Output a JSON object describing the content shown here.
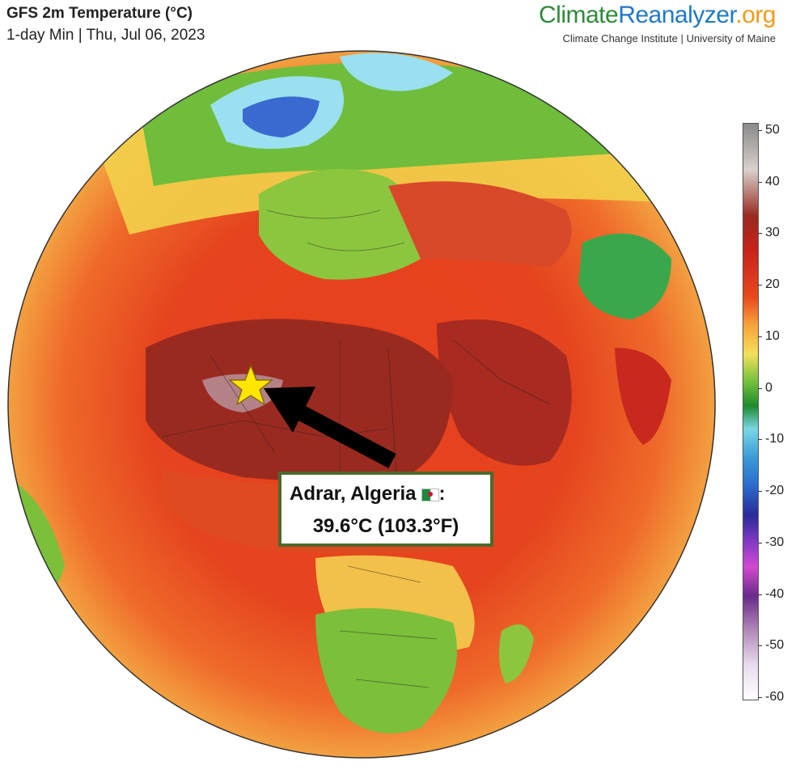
{
  "header": {
    "title": "GFS 2m Temperature (°C)",
    "subtitle": "1-day Min | Thu, Jul 06, 2023"
  },
  "brand": {
    "part1": "Climate",
    "part2": "Reanalyzer",
    "part3": ".org",
    "tagline": "Climate Change Institute | University of Maine"
  },
  "colorbar": {
    "ticks": [
      "50",
      "40",
      "30",
      "20",
      "10",
      "0",
      "-10",
      "-20",
      "-30",
      "-40",
      "-50",
      "-60"
    ],
    "min": -60,
    "max": 50
  },
  "callout": {
    "place": "Adrar, Algeria",
    "separator": ":",
    "temperature": "39.6°C (103.3°F)"
  },
  "marker": {
    "type": "star",
    "color": "#ffe600"
  },
  "colors": {
    "hot": "#c8281e",
    "very_hot": "#8c2a22",
    "warm": "#f06a2a",
    "mild": "#f3c84a",
    "cool": "#4caa3a",
    "cold": "#3a6ad0",
    "ice": "#9ae0f0"
  }
}
